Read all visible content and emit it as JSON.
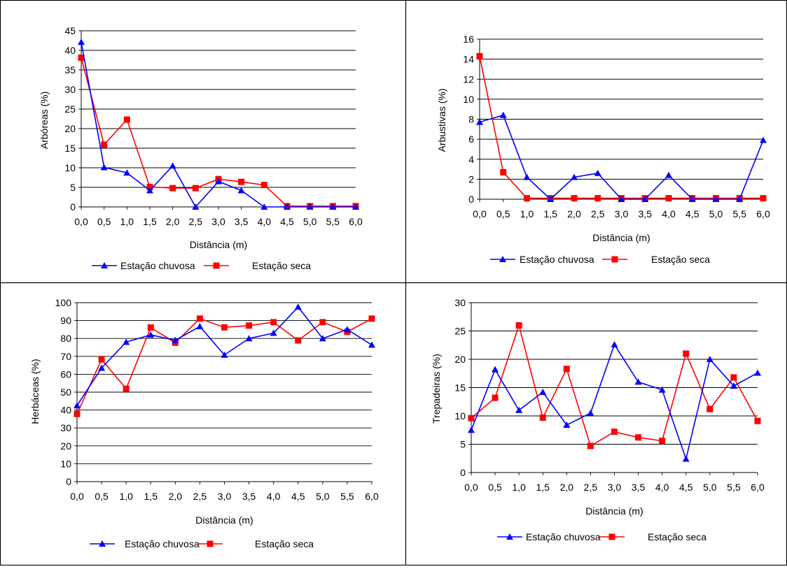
{
  "chart_data": [
    {
      "type": "line",
      "ylabel": "Arbóreas (%)",
      "xlabel": "Distância (m)",
      "categories": [
        "0,0",
        "0,5",
        "1,0",
        "1,5",
        "2,0",
        "2,5",
        "3,0",
        "3,5",
        "4,0",
        "4,5",
        "5,0",
        "5,5",
        "6,0"
      ],
      "yticks": [
        "0",
        "5",
        "10",
        "15",
        "20",
        "25",
        "30",
        "35",
        "40",
        "45"
      ],
      "ylim": [
        0,
        45
      ],
      "grid": true,
      "legend_position": "bottom",
      "series": [
        {
          "name": "Estação chuvosa",
          "color": "#0000ff",
          "marker": "triangle",
          "values": [
            42.1,
            10.1,
            8.7,
            4.2,
            10.5,
            0,
            6.5,
            4.2,
            0,
            0,
            0,
            0,
            0
          ]
        },
        {
          "name": "Estação seca",
          "color": "#ff0000",
          "marker": "square",
          "values": [
            38.1,
            15.9,
            22.3,
            5.1,
            4.8,
            4.8,
            7.1,
            6.4,
            5.6,
            0.2,
            0.2,
            0.2,
            0.2
          ]
        }
      ]
    },
    {
      "type": "line",
      "ylabel": "Arbustivas (%)",
      "xlabel": "Distância (m)",
      "categories": [
        "0,0",
        "0,5",
        "1,0",
        "1,5",
        "2,0",
        "2,5",
        "3,0",
        "3,5",
        "4,0",
        "4,5",
        "5,0",
        "5,5",
        "6,0"
      ],
      "yticks": [
        "0",
        "2",
        "4",
        "6",
        "8",
        "10",
        "12",
        "14",
        "16"
      ],
      "ylim": [
        0,
        16
      ],
      "grid": true,
      "legend_position": "bottom",
      "series": [
        {
          "name": "Estação chuvosa",
          "color": "#0000ff",
          "marker": "triangle",
          "values": [
            7.7,
            8.4,
            2.2,
            0,
            2.2,
            2.6,
            0,
            0,
            2.4,
            0,
            0,
            0,
            5.9
          ]
        },
        {
          "name": "Estação seca",
          "color": "#ff0000",
          "marker": "square",
          "values": [
            14.3,
            2.7,
            0.1,
            0.1,
            0.1,
            0.1,
            0.1,
            0.1,
            0.1,
            0.1,
            0.1,
            0.1,
            0.1
          ]
        }
      ]
    },
    {
      "type": "line",
      "ylabel": "Herbáceas (%)",
      "xlabel": "Distância (m)",
      "categories": [
        "0,0",
        "0,5",
        "1,0",
        "1,5",
        "2,0",
        "2,5",
        "3,0",
        "3,5",
        "4,0",
        "4,5",
        "5,0",
        "5,5",
        "6,0"
      ],
      "yticks": [
        "0",
        "10",
        "20",
        "30",
        "40",
        "50",
        "60",
        "70",
        "80",
        "90",
        "100"
      ],
      "ylim": [
        0,
        100
      ],
      "grid": true,
      "legend_position": "bottom",
      "series": [
        {
          "name": "Estação chuvosa",
          "color": "#0000ff",
          "marker": "triangle",
          "values": [
            42.5,
            63.5,
            78,
            82,
            79,
            86.7,
            70.8,
            80,
            83,
            97.6,
            80,
            85,
            76.4
          ]
        },
        {
          "name": "Estação seca",
          "color": "#ff0000",
          "marker": "square",
          "values": [
            37.8,
            68.3,
            51.9,
            86.1,
            77.6,
            91.1,
            86.2,
            87.2,
            89.1,
            78.9,
            89.1,
            83.7,
            91.1
          ]
        }
      ]
    },
    {
      "type": "line",
      "ylabel": "Trepadeiras (%)",
      "xlabel": "Distância (m)",
      "categories": [
        "0,0",
        "0,5",
        "1,0",
        "1,5",
        "2,0",
        "2,5",
        "3,0",
        "3,5",
        "4,0",
        "4,5",
        "5,0",
        "5,5",
        "6,0"
      ],
      "yticks": [
        "0",
        "5",
        "10",
        "15",
        "20",
        "25",
        "30"
      ],
      "ylim": [
        0,
        30
      ],
      "grid": true,
      "legend_position": "bottom",
      "series": [
        {
          "name": "Estação chuvosa",
          "color": "#0000ff",
          "marker": "triangle",
          "values": [
            7.5,
            18.2,
            11,
            14.2,
            8.4,
            10.5,
            22.6,
            16,
            14.6,
            2.4,
            20,
            15.3,
            17.6
          ]
        },
        {
          "name": "Estação seca",
          "color": "#ff0000",
          "marker": "square",
          "values": [
            9.6,
            13.2,
            26,
            9.7,
            18.3,
            4.7,
            7.2,
            6.2,
            5.6,
            21,
            11.2,
            16.8,
            9.1
          ]
        }
      ]
    }
  ]
}
